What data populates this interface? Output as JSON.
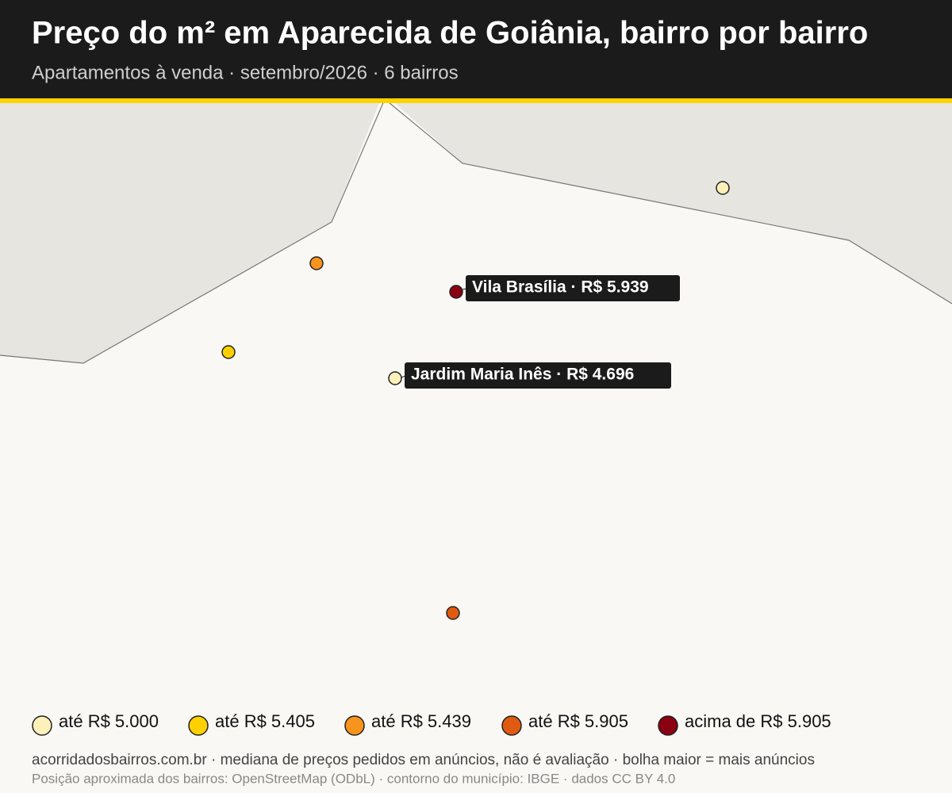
{
  "header": {
    "title": "Preço do m² em Aparecida de Goiânia, bairro por bairro",
    "subtitle": "Apartamentos à venda · setembro/2026 · 6 bairros"
  },
  "callouts": [
    {
      "label": "Vila Brasília · R$ 5.939"
    },
    {
      "label": "Jardim Maria Inês · R$ 4.696"
    }
  ],
  "legend": [
    {
      "label": "até R$ 5.000",
      "color": "#fdf0b8"
    },
    {
      "label": "até R$ 5.405",
      "color": "#ffd000"
    },
    {
      "label": "até R$ 5.439",
      "color": "#f7941d"
    },
    {
      "label": "até R$ 5.905",
      "color": "#e05a12"
    },
    {
      "label": "acima de R$ 5.905",
      "color": "#8b0010"
    }
  ],
  "footer": {
    "line1": "acorridadosbairros.com.br · mediana de preços pedidos em anúncios, não é avaliação · bolha maior = mais anúncios",
    "line2": "Posição aproximada dos bairros: OpenStreetMap (ODbL) · contorno do município: IBGE · dados CC BY 4.0"
  }
}
